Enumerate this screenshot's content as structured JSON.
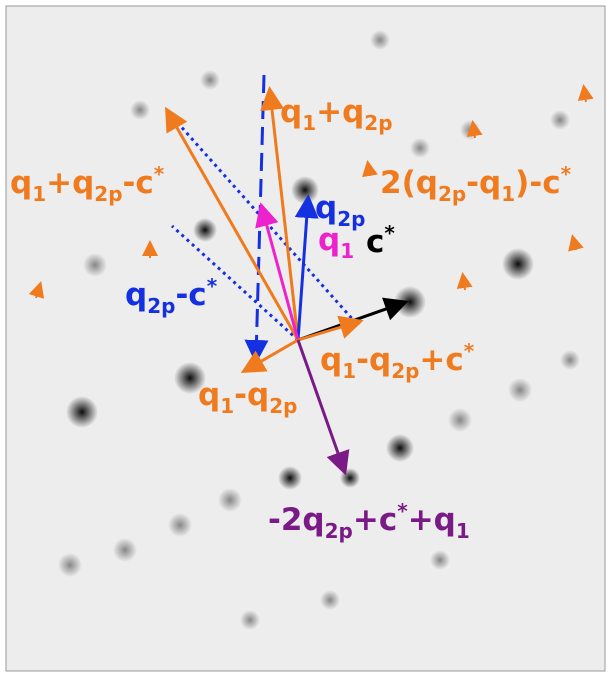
{
  "labels": [
    {
      "parts": [
        "q",
        "1",
        "+q",
        "2p"
      ]
    },
    {
      "parts": [
        "2(q",
        "2p",
        "-q",
        "1",
        ")-c",
        "*"
      ]
    },
    {
      "parts": [
        "q",
        "1",
        "+q",
        "2p",
        "-c",
        "*"
      ]
    },
    {
      "parts": [
        "q",
        "2p"
      ]
    },
    {
      "parts": [
        "q",
        "1"
      ]
    },
    {
      "parts": [
        "c",
        "*"
      ]
    },
    {
      "parts": [
        "q",
        "2p",
        "-c",
        "*"
      ]
    },
    {
      "parts": [
        "q",
        "1",
        "-q",
        "2p",
        "+c",
        "*"
      ]
    },
    {
      "parts": [
        "q",
        "1",
        "-q",
        "2p"
      ]
    },
    {
      "parts": [
        "-2q",
        "2p",
        "+c",
        "*",
        "+q",
        "1"
      ]
    }
  ]
}
